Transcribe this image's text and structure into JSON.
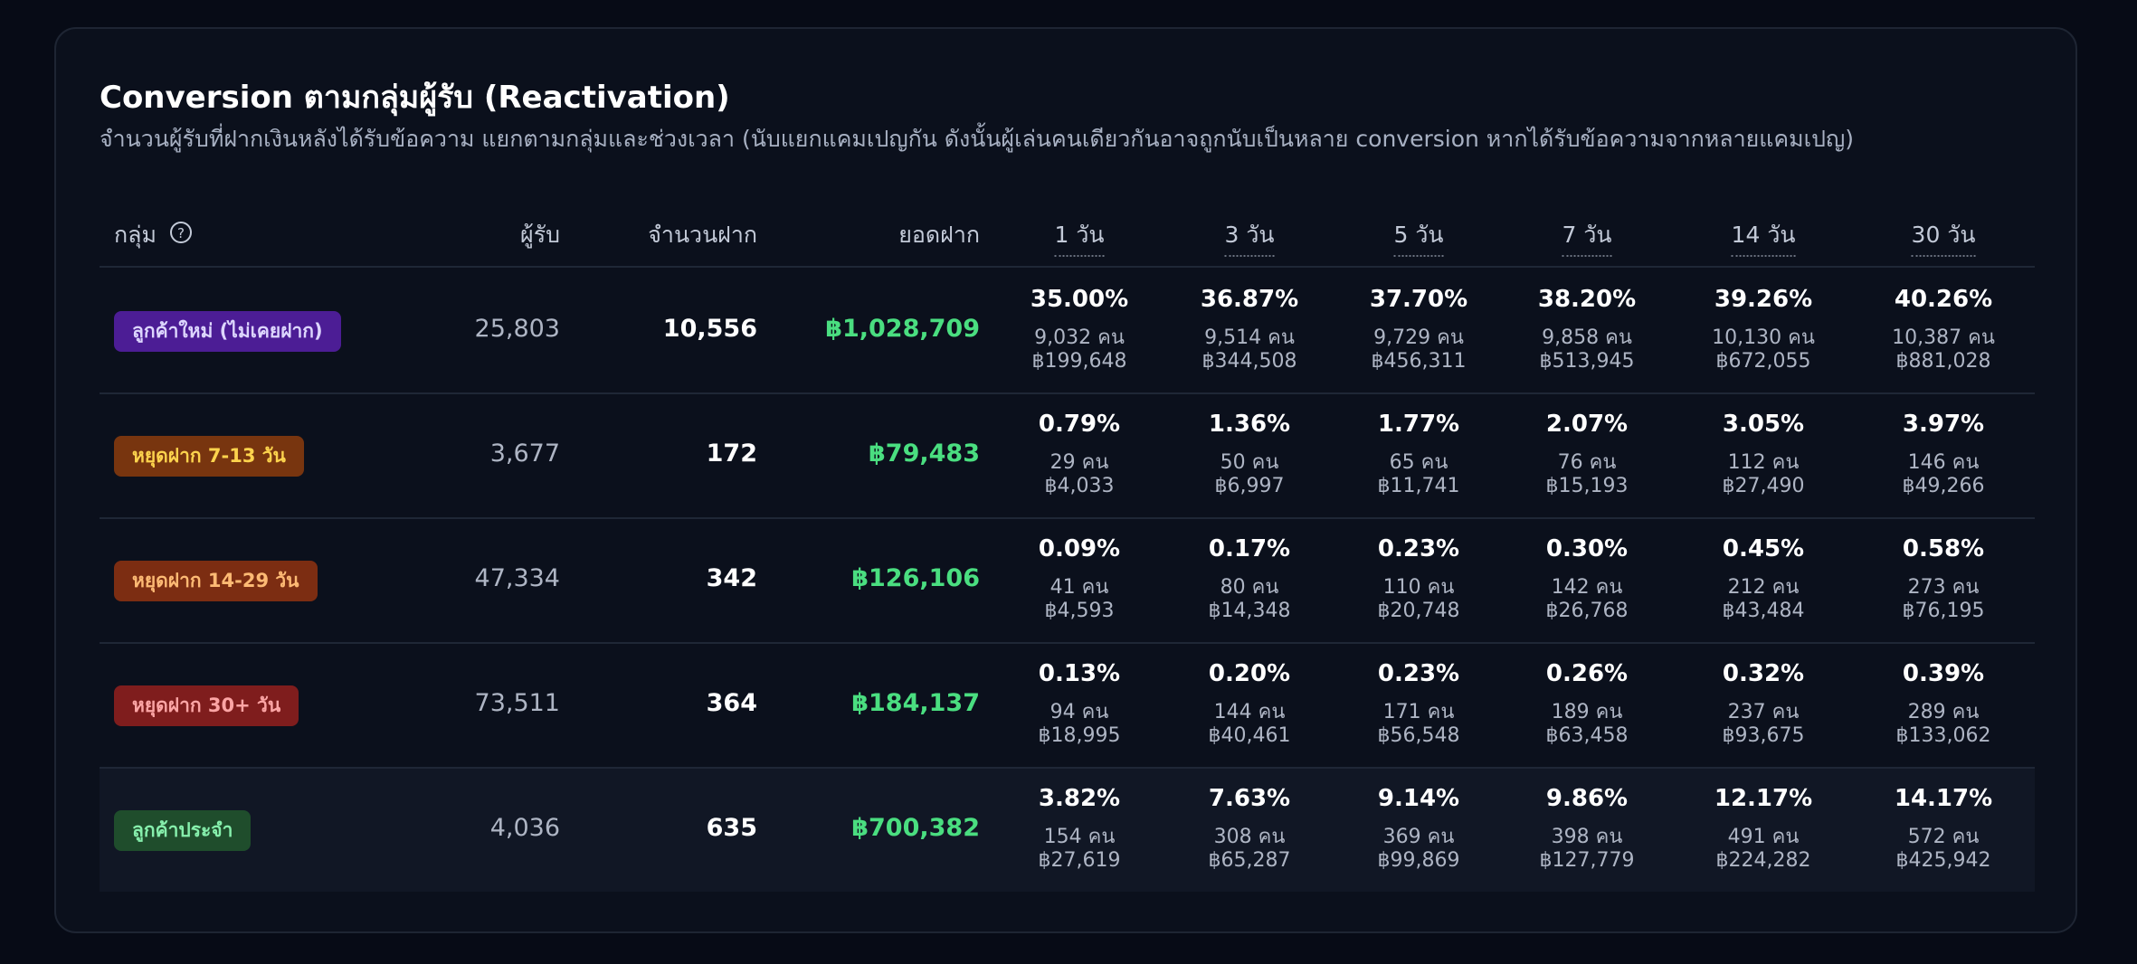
{
  "title": "Conversion ตามกลุ่มผู้รับ (Reactivation)",
  "subtitle": "จำนวนผู้รับที่ฝากเงินหลังได้รับข้อความ แยกตามกลุ่มและช่วงเวลา (นับแยกแคมเปญกัน ดังนั้นผู้เล่นคนเดียวกันอาจถูกนับเป็นหลาย conversion หากได้รับข้อความจากหลายแคมเปญ)",
  "table": {
    "headers": [
      "กลุ่ม",
      "ผู้รับ",
      "จำนวนฝาก",
      "ยอดฝาก",
      "1 วัน",
      "3 วัน",
      "5 วัน",
      "7 วัน",
      "14 วัน",
      "30 วัน"
    ],
    "rows": [
      {
        "group": "ลูกค้าใหม่ (ไม่เคยฝาก)",
        "recipients": "25,803",
        "deposits": "10,556",
        "amount": "฿1,028,709",
        "periods": [
          {
            "rate": "35.00%",
            "count": "9,032 คน",
            "amount": "฿199,648"
          },
          {
            "rate": "36.87%",
            "count": "9,514 คน",
            "amount": "฿344,508"
          },
          {
            "rate": "37.70%",
            "count": "9,729 คน",
            "amount": "฿456,311"
          },
          {
            "rate": "38.20%",
            "count": "9,858 คน",
            "amount": "฿513,945"
          },
          {
            "rate": "39.26%",
            "count": "10,130 คน",
            "amount": "฿672,055"
          },
          {
            "rate": "40.26%",
            "count": "10,387 คน",
            "amount": "฿881,028"
          }
        ]
      },
      {
        "group": "หยุดฝาก 7-13 วัน",
        "recipients": "3,677",
        "deposits": "172",
        "amount": "฿79,483",
        "periods": [
          {
            "rate": "0.79%",
            "count": "29 คน",
            "amount": "฿4,033"
          },
          {
            "rate": "1.36%",
            "count": "50 คน",
            "amount": "฿6,997"
          },
          {
            "rate": "1.77%",
            "count": "65 คน",
            "amount": "฿11,741"
          },
          {
            "rate": "2.07%",
            "count": "76 คน",
            "amount": "฿15,193"
          },
          {
            "rate": "3.05%",
            "count": "112 คน",
            "amount": "฿27,490"
          },
          {
            "rate": "3.97%",
            "count": "146 คน",
            "amount": "฿49,266"
          }
        ]
      },
      {
        "group": "หยุดฝาก 14-29 วัน",
        "recipients": "47,334",
        "deposits": "342",
        "amount": "฿126,106",
        "periods": [
          {
            "rate": "0.09%",
            "count": "41 คน",
            "amount": "฿4,593"
          },
          {
            "rate": "0.17%",
            "count": "80 คน",
            "amount": "฿14,348"
          },
          {
            "rate": "0.23%",
            "count": "110 คน",
            "amount": "฿20,748"
          },
          {
            "rate": "0.30%",
            "count": "142 คน",
            "amount": "฿26,768"
          },
          {
            "rate": "0.45%",
            "count": "212 คน",
            "amount": "฿43,484"
          },
          {
            "rate": "0.58%",
            "count": "273 คน",
            "amount": "฿76,195"
          }
        ]
      },
      {
        "group": "หยุดฝาก 30+ วัน",
        "recipients": "73,511",
        "deposits": "364",
        "amount": "฿184,137",
        "periods": [
          {
            "rate": "0.13%",
            "count": "94 คน",
            "amount": "฿18,995"
          },
          {
            "rate": "0.20%",
            "count": "144 คน",
            "amount": "฿40,461"
          },
          {
            "rate": "0.23%",
            "count": "171 คน",
            "amount": "฿56,548"
          },
          {
            "rate": "0.26%",
            "count": "189 คน",
            "amount": "฿63,458"
          },
          {
            "rate": "0.32%",
            "count": "237 คน",
            "amount": "฿93,675"
          },
          {
            "rate": "0.39%",
            "count": "289 คน",
            "amount": "฿133,062"
          }
        ]
      },
      {
        "group": "ลูกค้าประจำ",
        "recipients": "4,036",
        "deposits": "635",
        "amount": "฿700,382",
        "periods": [
          {
            "rate": "3.82%",
            "count": "154 คน",
            "amount": "฿27,619"
          },
          {
            "rate": "7.63%",
            "count": "308 คน",
            "amount": "฿65,287"
          },
          {
            "rate": "9.14%",
            "count": "369 คน",
            "amount": "฿99,869"
          },
          {
            "rate": "9.86%",
            "count": "398 คน",
            "amount": "฿127,779"
          },
          {
            "rate": "12.17%",
            "count": "491 คน",
            "amount": "฿224,282"
          },
          {
            "rate": "14.17%",
            "count": "572 คน",
            "amount": "฿425,942"
          }
        ]
      }
    ]
  }
}
